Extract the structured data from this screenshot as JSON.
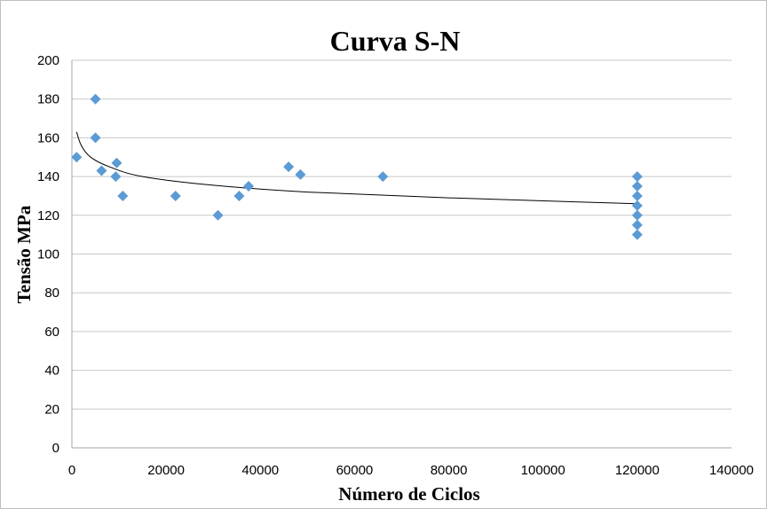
{
  "chart_data": {
    "type": "scatter",
    "title": "Curva S-N",
    "xlabel": "Número de Ciclos",
    "ylabel": "Tensão MPa",
    "xlim": [
      0,
      140000
    ],
    "ylim": [
      0,
      200
    ],
    "xticks": [
      "0",
      "20000",
      "40000",
      "60000",
      "80000",
      "100000",
      "120000",
      "140000"
    ],
    "yticks": [
      "0",
      "20",
      "40",
      "60",
      "80",
      "100",
      "120",
      "140",
      "160",
      "180",
      "200"
    ],
    "grid": "horizontal",
    "marker_color": "#5B9BD5",
    "trendline_color": "#000000",
    "series": [
      {
        "points": [
          {
            "x": 1000,
            "y": 150
          },
          {
            "x": 5000,
            "y": 180
          },
          {
            "x": 5000,
            "y": 160
          },
          {
            "x": 6300,
            "y": 143
          },
          {
            "x": 9500,
            "y": 147
          },
          {
            "x": 9300,
            "y": 140
          },
          {
            "x": 10800,
            "y": 130
          },
          {
            "x": 22000,
            "y": 130
          },
          {
            "x": 31000,
            "y": 120
          },
          {
            "x": 35500,
            "y": 130
          },
          {
            "x": 37500,
            "y": 135
          },
          {
            "x": 46000,
            "y": 145
          },
          {
            "x": 48500,
            "y": 141
          },
          {
            "x": 66000,
            "y": 140
          },
          {
            "x": 120000,
            "y": 140
          },
          {
            "x": 120000,
            "y": 135
          },
          {
            "x": 120000,
            "y": 130
          },
          {
            "x": 120000,
            "y": 125
          },
          {
            "x": 120000,
            "y": 120
          },
          {
            "x": 120000,
            "y": 115
          },
          {
            "x": 120000,
            "y": 110
          }
        ]
      }
    ],
    "trendline": {
      "type": "power",
      "points": [
        {
          "x": 1000,
          "y": 163
        },
        {
          "x": 2000,
          "y": 156
        },
        {
          "x": 4000,
          "y": 150
        },
        {
          "x": 8000,
          "y": 145
        },
        {
          "x": 15000,
          "y": 140
        },
        {
          "x": 30000,
          "y": 135.5
        },
        {
          "x": 50000,
          "y": 132
        },
        {
          "x": 80000,
          "y": 129
        },
        {
          "x": 120000,
          "y": 126
        }
      ]
    }
  }
}
